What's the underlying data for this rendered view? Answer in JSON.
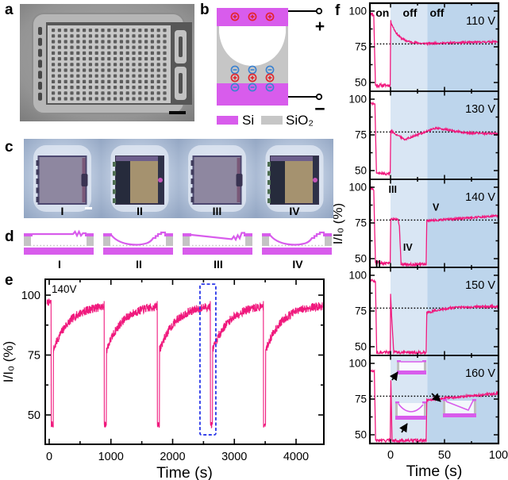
{
  "figure_labels": {
    "a": "a",
    "b": "b",
    "c": "c",
    "d": "d",
    "e": "e",
    "f": "f"
  },
  "colors": {
    "trace": "#F0197D",
    "si_magenta": "#D85CEC",
    "sio2_gray": "#C6C6C6",
    "light_blue": "#D9E6F4",
    "dark_blue": "#BDD5EC",
    "plus_red": "#E3242B",
    "minus_blue": "#3B82D0",
    "highlight_box": "#2936E8"
  },
  "panel_b": {
    "legend": [
      {
        "label": "Si"
      },
      {
        "label": "SiO₂"
      }
    ],
    "terminal_plus": "+",
    "terminal_minus": "−"
  },
  "panel_c": {
    "items": [
      {
        "numeral": "I",
        "type": "flat"
      },
      {
        "numeral": "II",
        "type": "collapsed"
      },
      {
        "numeral": "III",
        "type": "flat"
      },
      {
        "numeral": "IV",
        "type": "collapsed"
      }
    ]
  },
  "panel_d": {
    "items": [
      {
        "numeral": "I",
        "shape": "flat"
      },
      {
        "numeral": "II",
        "shape": "sag"
      },
      {
        "numeral": "III",
        "shape": "tilt"
      },
      {
        "numeral": "IV",
        "shape": "sag"
      }
    ]
  },
  "chart_data": [
    {
      "id": "e",
      "type": "line",
      "annotation": "140V",
      "xlabel": "Time (s)",
      "ylabel": "I/I₀ (%)",
      "xticks": [
        0,
        1000,
        2000,
        3000,
        4000
      ],
      "xminor": [
        500,
        1500,
        2500,
        3500
      ],
      "yticks": [
        100,
        75,
        50
      ],
      "yminor": [
        87.5,
        62.5
      ],
      "xlim": [
        -60,
        4450
      ],
      "ylim": [
        37.7,
        106.6
      ],
      "series": [
        {
          "name": "I/I0 recovery cycles",
          "color": "#F0197D",
          "cycles": {
            "starts": [
              30,
              890,
              1750,
              2610,
              3470
            ],
            "pre_level": 97,
            "low_level": 46,
            "low_duration": 35,
            "recover_start": 77,
            "recover_end": 96,
            "tau": 260,
            "end_time": 4430
          }
        }
      ],
      "highlight_box": {
        "t": [
          2443,
          2700
        ],
        "p": [
          41.7,
          104.6
        ]
      }
    },
    {
      "id": "f",
      "type": "line",
      "xlabel": "Time (s)",
      "ylabel": "I/I₀ (%)",
      "xticks": [
        0,
        50,
        100
      ],
      "xminor": [
        25,
        75
      ],
      "yticks": [
        100,
        75,
        50
      ],
      "yminor": [
        87.5,
        62.5
      ],
      "xlim": [
        -19,
        100
      ],
      "regions": {
        "white": [
          -19,
          0
        ],
        "light": [
          0,
          34.2
        ],
        "dark": [
          34.2,
          100
        ]
      },
      "top_labels": [
        {
          "text": "on",
          "t": -7.5
        },
        {
          "text": "off",
          "t": 18
        },
        {
          "text": "off",
          "t": 43
        }
      ],
      "dashed_level": 77,
      "panels": [
        {
          "voltage": "110 V",
          "segments": [
            [
              -19,
              -15.5,
              99,
              97,
              "line",
              0.8
            ],
            [
              -15.5,
              -14,
              97,
              48,
              "line",
              0
            ],
            [
              -14,
              -0.3,
              48,
              48,
              "line",
              1.1
            ],
            [
              -0.3,
              0.2,
              48,
              93,
              "line",
              0
            ],
            [
              0.2,
              28,
              93,
              77.3,
              "exp",
              0.7
            ],
            [
              28,
              100,
              77.3,
              78.6,
              "line",
              0.65
            ]
          ]
        },
        {
          "voltage": "130 V",
          "segments": [
            [
              -19,
              -14.5,
              97.5,
              96.5,
              "line",
              0.8
            ],
            [
              -14.5,
              -13,
              96.5,
              48,
              "line",
              0
            ],
            [
              -13,
              -0.3,
              48,
              48,
              "line",
              1.1
            ],
            [
              -0.3,
              0.2,
              48,
              78,
              "line",
              0
            ],
            [
              0.2,
              5,
              78,
              75.5,
              "line",
              0.6
            ],
            [
              5,
              13,
              75.5,
              71.8,
              "line",
              0.6
            ],
            [
              13,
              42,
              71.8,
              79.8,
              "line",
              0.7
            ],
            [
              42,
              70,
              79.8,
              76.3,
              "line",
              0.7
            ],
            [
              70,
              100,
              76.3,
              75.8,
              "line",
              0.7
            ]
          ]
        },
        {
          "voltage": "140 V",
          "segments": [
            [
              -19,
              -15.5,
              100,
              98,
              "line",
              0.8
            ],
            [
              -15.5,
              -14,
              98,
              47,
              "line",
              0
            ],
            [
              -14,
              -0.3,
              47,
              47,
              "line",
              1.1
            ],
            [
              -0.3,
              0.2,
              47,
              78,
              "line",
              0
            ],
            [
              0.2,
              7,
              78,
              77.5,
              "line",
              0.5
            ],
            [
              7,
              8.2,
              77.5,
              72.5,
              "line",
              0.3
            ],
            [
              8.2,
              9.8,
              72.5,
              46,
              "line",
              0.3
            ],
            [
              9.8,
              33,
              46,
              46,
              "line",
              1.1
            ],
            [
              33,
              33.6,
              46,
              76.5,
              "line",
              0
            ],
            [
              33.6,
              100,
              76.5,
              80,
              "line",
              0.7
            ]
          ],
          "numerals": [
            {
              "text": "II",
              "t": -11.5,
              "p": 44
            },
            {
              "text": "III",
              "t": 2,
              "p": 96
            },
            {
              "text": "IV",
              "t": 16,
              "p": 55.6
            },
            {
              "text": "V",
              "t": 42,
              "p": 83.5
            }
          ]
        },
        {
          "voltage": "150 V",
          "segments": [
            [
              -19,
              -14,
              97,
              95.5,
              "line",
              0.8
            ],
            [
              -14,
              -12.8,
              95.5,
              46,
              "line",
              0
            ],
            [
              -12.8,
              -0.3,
              46,
              46,
              "line",
              1.1
            ],
            [
              -0.3,
              0.1,
              46,
              87,
              "line",
              0
            ],
            [
              0.1,
              1,
              87,
              71,
              "line",
              0.4
            ],
            [
              1,
              3,
              71,
              46,
              "line",
              0.4
            ],
            [
              3,
              33,
              46,
              46,
              "line",
              1.1
            ],
            [
              33,
              33.6,
              46,
              73.5,
              "line",
              0
            ],
            [
              33.6,
              100,
              73.5,
              78.3,
              "exp",
              0.8
            ]
          ]
        },
        {
          "voltage": "160 V",
          "segments": [
            [
              -19,
              -15,
              95,
              94,
              "line",
              0.8
            ],
            [
              -15,
              -13.8,
              94,
              46,
              "line",
              0
            ],
            [
              -13.8,
              -0.3,
              46,
              46,
              "line",
              1.1
            ],
            [
              -0.3,
              0.3,
              46,
              88,
              "line",
              0
            ],
            [
              0.3,
              1.4,
              88,
              46,
              "line",
              0.4
            ],
            [
              1.4,
              33,
              46,
              46,
              "line",
              1.1
            ],
            [
              33,
              33.6,
              46,
              74.5,
              "line",
              0
            ],
            [
              33.6,
              100,
              74.5,
              79,
              "line",
              0.8
            ]
          ],
          "insets": [
            {
              "shape": "flat"
            },
            {
              "shape": "sag"
            },
            {
              "shape": "tilt"
            }
          ]
        }
      ]
    }
  ]
}
